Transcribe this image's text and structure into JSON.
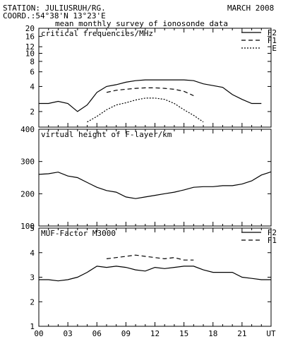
{
  "header": {
    "station": "STATION: JULIUSRUH/RG.",
    "coord": "COORD.:54°38'N 13°23'E",
    "subtitle": "mean monthly survey of ionosonde data",
    "date": "MARCH 2008"
  },
  "x_axis": {
    "range": [
      0,
      24
    ],
    "ticks": [
      0,
      3,
      6,
      9,
      12,
      15,
      18,
      21
    ],
    "tick_labels": [
      "00",
      "03",
      "06",
      "09",
      "12",
      "15",
      "18",
      "21",
      "UT"
    ]
  },
  "chart_data": [
    {
      "type": "line",
      "title": "critical frequencies/MHz",
      "y_scale": "log",
      "ylim": [
        1.3,
        20
      ],
      "y_ticks": [
        2,
        4,
        6,
        8,
        10,
        12,
        16,
        20
      ],
      "grid": false,
      "legend_position": "top-right",
      "series": [
        {
          "name": "F2",
          "style": "solid",
          "x": [
            0,
            1,
            2,
            3,
            4,
            5,
            6,
            7,
            8,
            9,
            10,
            11,
            12,
            13,
            14,
            15,
            16,
            17,
            18,
            19,
            20,
            21,
            22,
            23
          ],
          "y": [
            2.5,
            2.5,
            2.65,
            2.5,
            2.0,
            2.4,
            3.4,
            4.0,
            4.2,
            4.5,
            4.7,
            4.8,
            4.8,
            4.8,
            4.8,
            4.8,
            4.7,
            4.3,
            4.1,
            3.9,
            3.2,
            2.8,
            2.5,
            2.5
          ]
        },
        {
          "name": "F1",
          "style": "dashed",
          "x": [
            7,
            8,
            9,
            10,
            11,
            12,
            13,
            14,
            15,
            16
          ],
          "y": [
            3.4,
            3.6,
            3.7,
            3.8,
            3.85,
            3.85,
            3.8,
            3.7,
            3.5,
            3.1
          ]
        },
        {
          "name": "E",
          "style": "dotted",
          "x": [
            5,
            6,
            7,
            8,
            9,
            10,
            11,
            12,
            13,
            14,
            15,
            16,
            17
          ],
          "y": [
            1.5,
            1.75,
            2.1,
            2.4,
            2.55,
            2.75,
            2.9,
            2.9,
            2.8,
            2.5,
            2.1,
            1.8,
            1.5
          ]
        }
      ]
    },
    {
      "type": "line",
      "title": "virtual height of F-layer/km",
      "ylim": [
        100,
        400
      ],
      "y_ticks": [
        100,
        200,
        300,
        400
      ],
      "grid": false,
      "series": [
        {
          "name": "",
          "style": "solid",
          "x": [
            0,
            1,
            2,
            3,
            4,
            5,
            6,
            7,
            8,
            9,
            10,
            11,
            12,
            13,
            14,
            15,
            16,
            17,
            18,
            19,
            20,
            21,
            22,
            23,
            24
          ],
          "y": [
            260,
            262,
            267,
            255,
            250,
            235,
            220,
            210,
            205,
            190,
            185,
            190,
            195,
            200,
            205,
            212,
            220,
            222,
            222,
            225,
            225,
            230,
            240,
            258,
            268
          ]
        }
      ]
    },
    {
      "type": "line",
      "title": "MUF-Factor M3000",
      "ylim": [
        1,
        5
      ],
      "y_ticks": [
        1,
        2,
        3,
        4,
        5
      ],
      "grid": false,
      "legend_position": "top-right",
      "series": [
        {
          "name": "F2",
          "style": "solid",
          "x": [
            0,
            1,
            2,
            3,
            4,
            5,
            6,
            7,
            8,
            9,
            10,
            11,
            12,
            13,
            14,
            15,
            16,
            17,
            18,
            19,
            20,
            21,
            22,
            23,
            24
          ],
          "y": [
            2.9,
            2.9,
            2.85,
            2.9,
            3.0,
            3.2,
            3.45,
            3.4,
            3.45,
            3.4,
            3.3,
            3.25,
            3.4,
            3.35,
            3.4,
            3.45,
            3.45,
            3.3,
            3.2,
            3.2,
            3.2,
            3.0,
            2.95,
            2.9,
            2.9
          ]
        },
        {
          "name": "F1",
          "style": "dashed",
          "x": [
            7,
            8,
            9,
            10,
            11,
            12,
            13,
            14,
            15,
            16
          ],
          "y": [
            3.75,
            3.8,
            3.85,
            3.9,
            3.85,
            3.8,
            3.75,
            3.8,
            3.7,
            3.7
          ]
        }
      ]
    }
  ]
}
